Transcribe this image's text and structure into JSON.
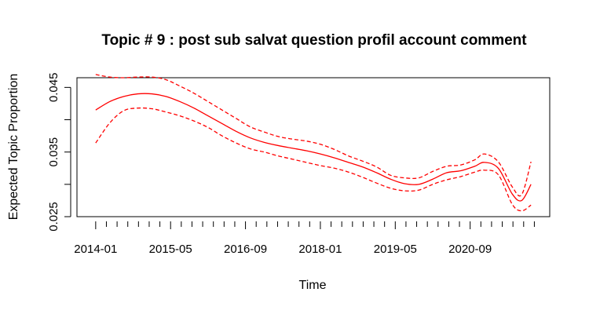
{
  "chart_data": {
    "type": "line",
    "title": "Topic # 9 :  post sub salvat question profil account comment",
    "xlabel": "Time",
    "ylabel": "Expected Topic Proportion",
    "xlim": [
      "2013-09",
      "2022-02"
    ],
    "ylim": [
      0.025,
      0.0465
    ],
    "x_ticks": [
      "2014-01",
      "2015-05",
      "2016-09",
      "2018-01",
      "2019-05",
      "2020-09"
    ],
    "y_ticks": [
      0.025,
      0.03,
      0.035,
      0.04,
      0.045
    ],
    "y_tick_labels": [
      "0.025",
      "",
      "0.035",
      "",
      "0.045"
    ],
    "minor_x_ticks_count": 42,
    "color": "#ff0000",
    "x": [
      "2014-01",
      "2014-04",
      "2014-07",
      "2014-10",
      "2015-01",
      "2015-04",
      "2015-07",
      "2015-10",
      "2016-01",
      "2016-04",
      "2016-07",
      "2016-10",
      "2017-01",
      "2017-04",
      "2017-07",
      "2017-10",
      "2018-01",
      "2018-04",
      "2018-07",
      "2018-10",
      "2019-01",
      "2019-04",
      "2019-07",
      "2019-10",
      "2020-01",
      "2020-04",
      "2020-07",
      "2020-10",
      "2020-12",
      "2021-03",
      "2021-06",
      "2021-08",
      "2021-10"
    ],
    "series": [
      {
        "style": "solid",
        "values": [
          0.0415,
          0.0428,
          0.0436,
          0.044,
          0.044,
          0.0436,
          0.0428,
          0.0418,
          0.0406,
          0.0394,
          0.0382,
          0.0372,
          0.0365,
          0.036,
          0.0356,
          0.0352,
          0.0347,
          0.0341,
          0.0334,
          0.0327,
          0.0318,
          0.0308,
          0.0301,
          0.03,
          0.0308,
          0.0318,
          0.0321,
          0.0328,
          0.0334,
          0.0325,
          0.0285,
          0.0275,
          0.03
        ]
      },
      {
        "style": "dashed",
        "values": [
          0.047,
          0.0466,
          0.0465,
          0.0466,
          0.0466,
          0.0462,
          0.0452,
          0.0441,
          0.0428,
          0.0415,
          0.0402,
          0.0389,
          0.0381,
          0.0374,
          0.037,
          0.0367,
          0.0362,
          0.0354,
          0.0344,
          0.0336,
          0.0327,
          0.0314,
          0.031,
          0.031,
          0.032,
          0.0328,
          0.033,
          0.0338,
          0.0347,
          0.0335,
          0.0296,
          0.0284,
          0.0335
        ]
      },
      {
        "style": "dashed",
        "values": [
          0.0364,
          0.0395,
          0.0414,
          0.0418,
          0.0417,
          0.0412,
          0.0406,
          0.0398,
          0.0388,
          0.0375,
          0.0364,
          0.0355,
          0.035,
          0.0344,
          0.0339,
          0.0334,
          0.0329,
          0.0325,
          0.0319,
          0.0311,
          0.0302,
          0.0294,
          0.029,
          0.0291,
          0.03,
          0.0307,
          0.0312,
          0.0319,
          0.0322,
          0.0315,
          0.0269,
          0.0259,
          0.0268
        ]
      }
    ]
  }
}
